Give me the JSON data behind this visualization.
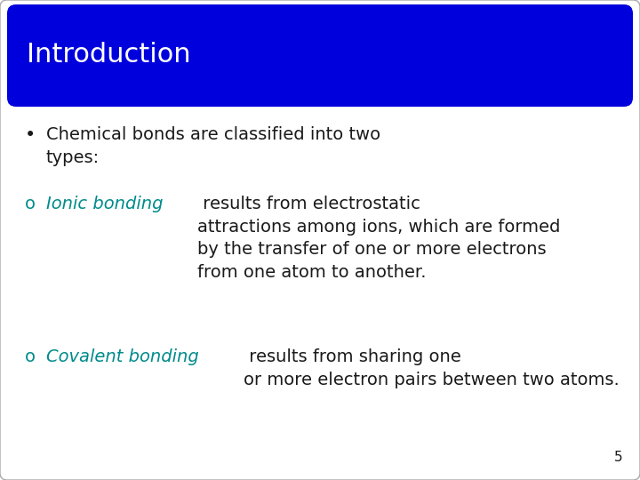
{
  "title": "Introduction",
  "title_bg_color": "#0000dd",
  "title_text_color": "#ffffff",
  "title_fontsize": 22,
  "body_fontsize": 14,
  "teal_color": "#008b8b",
  "black_color": "#1a1a1a",
  "background_color": "#ffffff",
  "page_number": "5",
  "bullet_line1": "Chemical bonds are classified into two\ntypes:",
  "sub1_italic": "Ionic bonding",
  "sub1_rest": " results from electrostatic\nattractions among ions, which are formed\nby the transfer of one or more electrons\nfrom one atom to another.",
  "sub2_italic": "Covalent bonding",
  "sub2_rest": " results from sharing one\nor more electron pairs between two atoms.",
  "sub_marker": "o"
}
